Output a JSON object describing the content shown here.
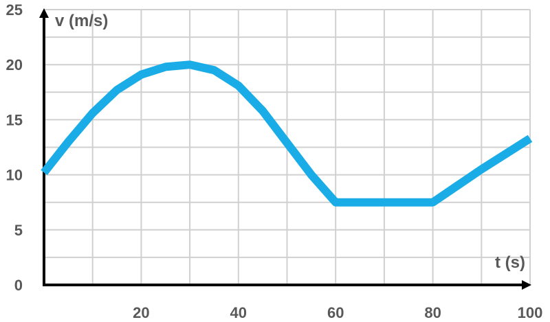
{
  "chart_data": {
    "type": "line",
    "xlabel": "t (s)",
    "ylabel": "v (m/s)",
    "xlim": [
      0,
      100
    ],
    "ylim": [
      0,
      25
    ],
    "x_ticks": [
      20,
      40,
      60,
      80,
      100
    ],
    "y_ticks": [
      0,
      5,
      10,
      15,
      20,
      25
    ],
    "x_grid_step": 10,
    "y_grid_step": 2.5,
    "grid": true,
    "series": [
      {
        "color": "#1aace6",
        "x": [
          0,
          5,
          10,
          15,
          20,
          25,
          30,
          35,
          40,
          45,
          50,
          55,
          60,
          65,
          70,
          75,
          80,
          85,
          90,
          95,
          100
        ],
        "y": [
          10.2,
          13.0,
          15.6,
          17.7,
          19.1,
          19.8,
          20.0,
          19.5,
          18.1,
          15.8,
          12.9,
          10.0,
          7.5,
          7.5,
          7.5,
          7.5,
          7.5,
          9.0,
          10.5,
          11.9,
          13.3
        ]
      }
    ]
  }
}
